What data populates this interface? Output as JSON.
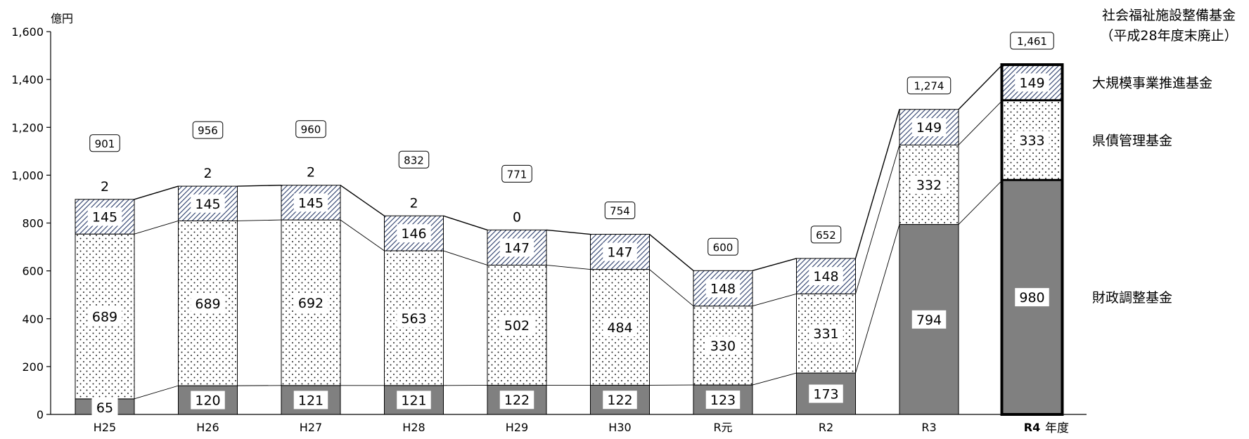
{
  "chart_data": {
    "type": "bar",
    "y_unit": "億円",
    "x_unit": "年度",
    "ylim": [
      0,
      1600
    ],
    "y_ticks": [
      0,
      200,
      400,
      600,
      800,
      1000,
      1200,
      1400,
      1600
    ],
    "y_tick_labels": [
      "0",
      "200",
      "400",
      "600",
      "800",
      "1,000",
      "1,200",
      "1,400",
      "1,600"
    ],
    "categories": [
      "H25",
      "H26",
      "H27",
      "H28",
      "H29",
      "H30",
      "R元",
      "R2",
      "R3",
      "R4"
    ],
    "highlight_category": "R4",
    "series": [
      {
        "name": "財政調整基金",
        "values": [
          65,
          120,
          121,
          121,
          122,
          122,
          123,
          173,
          794,
          980
        ],
        "color": "#808080"
      },
      {
        "name": "県債管理基金",
        "values": [
          689,
          689,
          692,
          563,
          502,
          484,
          330,
          331,
          332,
          333
        ]
      },
      {
        "name": "大規模事業推進基金",
        "values": [
          145,
          145,
          145,
          146,
          147,
          147,
          148,
          148,
          149,
          149
        ]
      },
      {
        "name": "社会福祉施設整備基金\n（平成28年度末廃止）",
        "values": [
          2,
          2,
          2,
          2,
          0,
          null,
          null,
          null,
          null,
          null
        ]
      }
    ],
    "totals": [
      "901",
      "956",
      "960",
      "832",
      "771",
      "754",
      "600",
      "652",
      "1,274",
      "1,461"
    ],
    "grid": false,
    "legend": "right"
  }
}
